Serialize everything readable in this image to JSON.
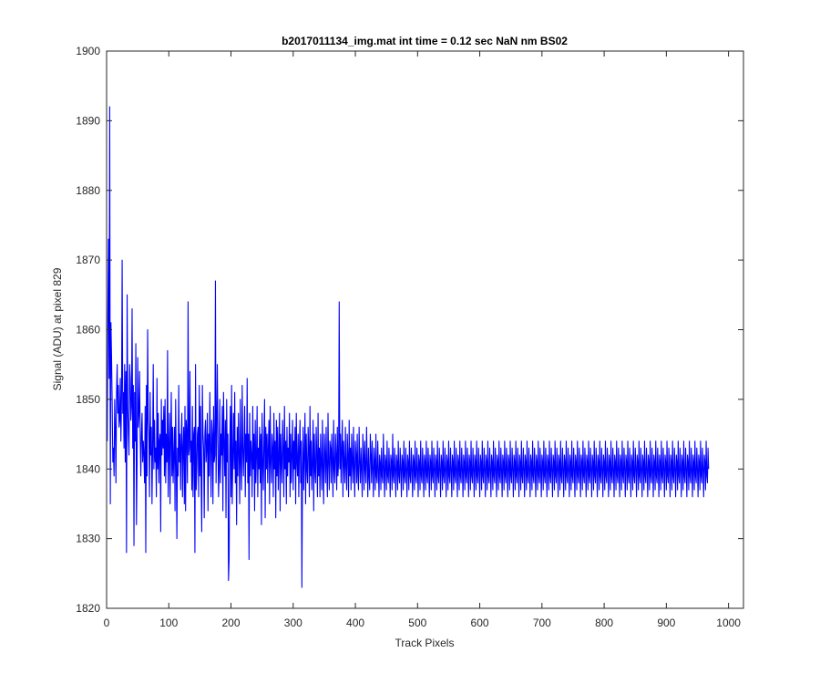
{
  "chart_data": {
    "type": "line",
    "title": "b2017011134_img.mat int time = 0.12 sec  NaN nm BS02",
    "xlabel": "Track Pixels",
    "ylabel": "Signal (ADU) at pixel 829",
    "xlim": [
      0,
      1024
    ],
    "ylim": [
      1820,
      1900
    ],
    "xticks": [
      0,
      100,
      200,
      300,
      400,
      500,
      600,
      700,
      800,
      900,
      1000
    ],
    "yticks": [
      1820,
      1830,
      1840,
      1850,
      1860,
      1870,
      1880,
      1890,
      1900
    ],
    "grid": false,
    "legend": "none",
    "series": [
      {
        "color": "#0000ff",
        "x_start": 1,
        "x_step": 1,
        "values": [
          1844,
          1862,
          1873,
          1853,
          1892,
          1835,
          1861,
          1856,
          1849,
          1841,
          1843,
          1839,
          1850,
          1846,
          1838,
          1851,
          1855,
          1848,
          1852,
          1846,
          1847,
          1853,
          1844,
          1850,
          1870,
          1848,
          1851,
          1843,
          1855,
          1841,
          1854,
          1828,
          1865,
          1849,
          1845,
          1842,
          1855,
          1853,
          1847,
          1849,
          1863,
          1843,
          1852,
          1829,
          1851,
          1844,
          1858,
          1832,
          1841,
          1856,
          1846,
          1848,
          1854,
          1845,
          1839,
          1845,
          1848,
          1841,
          1844,
          1842,
          1838,
          1849,
          1828,
          1852,
          1839,
          1860,
          1847,
          1845,
          1836,
          1851,
          1842,
          1846,
          1835,
          1843,
          1855,
          1840,
          1847,
          1841,
          1843,
          1836,
          1853,
          1840,
          1848,
          1838,
          1844,
          1845,
          1831,
          1850,
          1842,
          1847,
          1843,
          1849,
          1839,
          1850,
          1838,
          1845,
          1841,
          1857,
          1836,
          1843,
          1848,
          1835,
          1844,
          1851,
          1839,
          1846,
          1838,
          1842,
          1846,
          1834,
          1850,
          1841,
          1830,
          1843,
          1839,
          1852,
          1841,
          1845,
          1837,
          1844,
          1848,
          1836,
          1843,
          1846,
          1835,
          1849,
          1834,
          1847,
          1845,
          1838,
          1864,
          1842,
          1843,
          1854,
          1841,
          1844,
          1837,
          1849,
          1836,
          1845,
          1846,
          1828,
          1855,
          1837,
          1840,
          1845,
          1846,
          1836,
          1852,
          1839,
          1849,
          1838,
          1831,
          1852,
          1845,
          1843,
          1833,
          1845,
          1847,
          1841,
          1843,
          1848,
          1834,
          1845,
          1839,
          1851,
          1843,
          1836,
          1847,
          1845,
          1835,
          1849,
          1841,
          1842,
          1867,
          1838,
          1846,
          1855,
          1844,
          1836,
          1840,
          1850,
          1838,
          1845,
          1842,
          1849,
          1834,
          1851,
          1844,
          1839,
          1847,
          1833,
          1850,
          1841,
          1845,
          1824,
          1827,
          1843,
          1849,
          1836,
          1852,
          1835,
          1842,
          1848,
          1840,
          1851,
          1838,
          1844,
          1832,
          1846,
          1839,
          1848,
          1842,
          1835,
          1850,
          1841,
          1837,
          1852,
          1843,
          1839,
          1844,
          1849,
          1836,
          1845,
          1841,
          1853,
          1838,
          1845,
          1827,
          1848,
          1839,
          1844,
          1842,
          1836,
          1849,
          1840,
          1845,
          1834,
          1847,
          1838,
          1842,
          1849,
          1836,
          1843,
          1840,
          1846,
          1838,
          1845,
          1832,
          1848,
          1841,
          1837,
          1844,
          1850,
          1833,
          1846,
          1840,
          1845,
          1838,
          1843,
          1847,
          1835,
          1849,
          1841,
          1838,
          1845,
          1843,
          1836,
          1848,
          1840,
          1844,
          1833,
          1847,
          1839,
          1846,
          1837,
          1842,
          1848,
          1834,
          1845,
          1841,
          1838,
          1847,
          1843,
          1836,
          1849,
          1840,
          1844,
          1835,
          1846,
          1839,
          1843,
          1841,
          1848,
          1836,
          1845,
          1838,
          1842,
          1847,
          1837,
          1844,
          1840,
          1846,
          1835,
          1848,
          1841,
          1839,
          1845,
          1836,
          1843,
          1847,
          1838,
          1844,
          1823,
          1840,
          1846,
          1837,
          1842,
          1848,
          1835,
          1845,
          1840,
          1838,
          1846,
          1843,
          1836,
          1849,
          1839,
          1844,
          1837,
          1841,
          1847,
          1834,
          1845,
          1840,
          1838,
          1846,
          1842,
          1836,
          1848,
          1839,
          1843,
          1836,
          1845,
          1841,
          1837,
          1847,
          1840,
          1835,
          1845,
          1842,
          1838,
          1846,
          1840,
          1836,
          1848,
          1841,
          1837,
          1844,
          1843,
          1838,
          1845,
          1841,
          1836,
          1847,
          1840,
          1838,
          1845,
          1842,
          1837,
          1846,
          1839,
          1841,
          1864,
          1840,
          1845,
          1838,
          1843,
          1847,
          1836,
          1844,
          1841,
          1838,
          1846,
          1840,
          1837,
          1845,
          1842,
          1836,
          1847,
          1839,
          1843,
          1837,
          1845,
          1841,
          1838,
          1846,
          1840,
          1836,
          1844,
          1842,
          1838,
          1845,
          1839,
          1837,
          1846,
          1841,
          1838,
          1843,
          1840,
          1836,
          1845,
          1842,
          1837,
          1844,
          1840,
          1838,
          1846,
          1841,
          1836,
          1843,
          1839,
          1837,
          1845,
          1842,
          1838,
          1844,
          1840,
          1836,
          1843,
          1841,
          1837,
          1845,
          1839,
          1838,
          1844,
          1840,
          1836,
          1842,
          1841,
          1837,
          1843,
          1839,
          1838,
          1845,
          1840,
          1836,
          1842,
          1841,
          1837,
          1844,
          1839,
          1838,
          1843,
          1840,
          1836,
          1842,
          1841,
          1837,
          1845,
          1839,
          1838,
          1843,
          1840,
          1836,
          1842,
          1841,
          1837,
          1844,
          1839,
          1838,
          1843,
          1840,
          1836,
          1842,
          1841,
          1837,
          1844,
          1839,
          1838,
          1843,
          1840,
          1836,
          1842,
          1841,
          1837,
          1844,
          1839,
          1838,
          1843,
          1840,
          1836,
          1842,
          1841,
          1837,
          1844,
          1839,
          1838,
          1843,
          1840,
          1836,
          1842,
          1841,
          1837,
          1844,
          1839,
          1838,
          1843,
          1840,
          1836,
          1842,
          1841,
          1837,
          1844,
          1839,
          1838,
          1843,
          1840,
          1836,
          1842,
          1841,
          1837,
          1844,
          1839,
          1838,
          1843,
          1840,
          1836,
          1842,
          1841,
          1837,
          1844,
          1839,
          1838,
          1843,
          1840,
          1836,
          1842,
          1841,
          1837,
          1844,
          1839,
          1838,
          1843,
          1840,
          1836,
          1842,
          1841,
          1837,
          1844,
          1839,
          1838,
          1843,
          1840,
          1836,
          1842,
          1841,
          1837,
          1844,
          1839,
          1838,
          1843,
          1840,
          1836,
          1842,
          1841,
          1837,
          1844,
          1839,
          1838,
          1843,
          1840,
          1836,
          1842,
          1841,
          1837,
          1844,
          1839,
          1838,
          1843,
          1840,
          1836,
          1842,
          1841,
          1837,
          1844,
          1839,
          1838,
          1843,
          1840,
          1836,
          1842,
          1841,
          1837,
          1844,
          1839,
          1838,
          1843,
          1840,
          1836,
          1842,
          1841,
          1837,
          1844,
          1839,
          1838,
          1843,
          1840,
          1836,
          1842,
          1841,
          1837,
          1844,
          1839,
          1838,
          1843,
          1840,
          1836,
          1842,
          1841,
          1837,
          1844,
          1839,
          1838,
          1843,
          1840,
          1836,
          1842,
          1841,
          1837,
          1844,
          1839,
          1838,
          1843,
          1840,
          1836,
          1842,
          1841,
          1837,
          1844,
          1839,
          1838,
          1843,
          1840,
          1836,
          1842,
          1841,
          1837,
          1844,
          1839,
          1838,
          1843,
          1840,
          1836,
          1842,
          1841,
          1837,
          1844,
          1839,
          1838,
          1843,
          1840,
          1836,
          1842,
          1841,
          1837,
          1844,
          1839,
          1838,
          1843,
          1840,
          1836,
          1842,
          1841,
          1837,
          1844,
          1839,
          1838,
          1843,
          1840,
          1836,
          1842,
          1841,
          1837,
          1844,
          1839,
          1838,
          1843,
          1840,
          1836,
          1842,
          1841,
          1837,
          1844,
          1839,
          1838,
          1843,
          1840,
          1836,
          1842,
          1841,
          1837,
          1844,
          1839,
          1838,
          1843,
          1840,
          1836,
          1842,
          1841,
          1837,
          1844,
          1839,
          1838,
          1843,
          1840,
          1836,
          1842,
          1841,
          1837,
          1844,
          1839,
          1838,
          1843,
          1840,
          1836,
          1842,
          1841,
          1837,
          1844,
          1839,
          1838,
          1843,
          1840,
          1836,
          1842,
          1841,
          1837,
          1844,
          1839,
          1838,
          1843,
          1840,
          1836,
          1842,
          1841,
          1837,
          1844,
          1839,
          1838,
          1843,
          1840,
          1836,
          1842,
          1841,
          1837,
          1844,
          1839,
          1838,
          1843,
          1840,
          1836,
          1842,
          1841,
          1837,
          1844,
          1839,
          1838,
          1843,
          1840,
          1836,
          1842,
          1841,
          1837,
          1844,
          1839,
          1838,
          1843,
          1840,
          1836,
          1842,
          1841,
          1837,
          1844,
          1839,
          1838,
          1843,
          1840,
          1836,
          1842,
          1841,
          1837,
          1844,
          1839,
          1838,
          1843,
          1840,
          1836,
          1842,
          1841,
          1837,
          1844,
          1839,
          1838,
          1843,
          1840,
          1836,
          1842,
          1841,
          1837,
          1844,
          1839,
          1838,
          1843,
          1840,
          1836,
          1842,
          1841,
          1837,
          1844,
          1839,
          1838,
          1843,
          1840,
          1836,
          1842,
          1841,
          1837,
          1844,
          1839,
          1838,
          1843,
          1840,
          1836,
          1842,
          1841,
          1837,
          1844,
          1839,
          1838,
          1843,
          1840,
          1836,
          1842,
          1841,
          1837,
          1844,
          1839,
          1838,
          1843,
          1840,
          1836,
          1842,
          1841,
          1837,
          1844,
          1839,
          1838,
          1843,
          1840,
          1836,
          1842,
          1841,
          1837,
          1844,
          1839,
          1838,
          1843,
          1840,
          1836,
          1842,
          1841,
          1837,
          1844,
          1839,
          1838,
          1843,
          1840,
          1836,
          1842,
          1841,
          1837,
          1844,
          1839,
          1838,
          1843,
          1840,
          1836,
          1842,
          1841,
          1837,
          1844,
          1839,
          1838,
          1843,
          1840,
          1836,
          1842,
          1841,
          1837,
          1844,
          1839,
          1838,
          1843,
          1840,
          1836,
          1842,
          1841,
          1837,
          1844,
          1839,
          1838,
          1843,
          1840,
          1836,
          1842,
          1841,
          1837,
          1844,
          1839,
          1838,
          1843,
          1840,
          1836,
          1842,
          1841,
          1837,
          1844,
          1839,
          1838,
          1843,
          1840,
          1836,
          1842,
          1841,
          1837,
          1844,
          1839,
          1838,
          1843,
          1840,
          1836,
          1842,
          1841,
          1837,
          1844,
          1839,
          1838,
          1843,
          1840,
          1836,
          1842,
          1841,
          1837,
          1844,
          1839,
          1838,
          1843,
          1840,
          1836,
          1842,
          1841,
          1837,
          1844,
          1839,
          1838,
          1843,
          1840
        ]
      }
    ]
  }
}
